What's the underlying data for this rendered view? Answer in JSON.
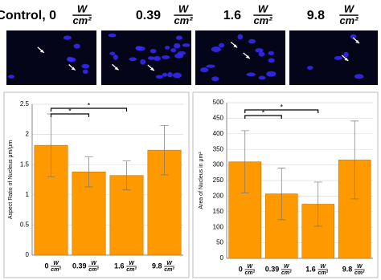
{
  "header": {
    "labels": [
      "Control, 0",
      "0.39",
      "1.6",
      "9.8"
    ],
    "unit_numerator": "W",
    "unit_denominator": "cm²"
  },
  "chart_data": [
    {
      "type": "bar",
      "ylabel": "Aspect Ratio of Nucleus μm/μm",
      "categories": [
        "0",
        "0.39",
        "1.6",
        "9.8"
      ],
      "unit_numerator": "W",
      "unit_denominator": "cm²",
      "values": [
        1.82,
        1.38,
        1.32,
        1.74
      ],
      "errors": [
        0.52,
        0.25,
        0.24,
        0.41
      ],
      "color": "#ff9900",
      "ylim": [
        0,
        2.5
      ],
      "yticks": [
        0,
        0.5,
        1,
        1.5,
        2,
        2.5
      ],
      "grid": true,
      "significance": [
        {
          "groups": [
            "0",
            "0.39"
          ],
          "label": "*"
        },
        {
          "groups": [
            "0",
            "1.6"
          ],
          "label": "*"
        }
      ]
    },
    {
      "type": "bar",
      "ylabel": "Area of Nucleus in μm²",
      "categories": [
        "0",
        "0.39",
        "1.6",
        "9.8"
      ],
      "unit_numerator": "W",
      "unit_denominator": "cm²",
      "values": [
        310,
        207,
        174,
        316
      ],
      "errors": [
        100,
        83,
        71,
        125
      ],
      "color": "#ff9900",
      "ylim": [
        0,
        500
      ],
      "yticks": [
        0,
        50,
        100,
        150,
        200,
        250,
        300,
        350,
        400,
        450,
        500
      ],
      "grid": true,
      "significance": [
        {
          "groups": [
            "0",
            "0.39"
          ],
          "label": "*"
        },
        {
          "groups": [
            "0",
            "1.6"
          ],
          "label": "*"
        }
      ]
    }
  ]
}
